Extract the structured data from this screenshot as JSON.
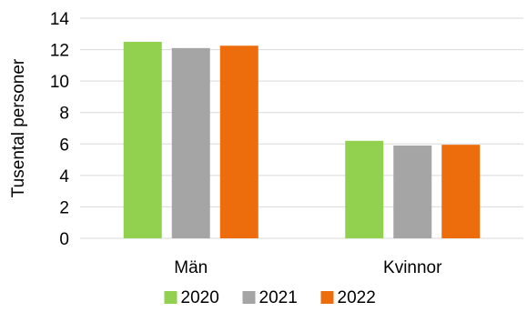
{
  "chart_data": {
    "type": "bar",
    "title": "",
    "xlabel": "",
    "ylabel": "Tusental personer",
    "ylim": [
      0,
      14
    ],
    "yticks": [
      0,
      2,
      4,
      6,
      8,
      10,
      12,
      14
    ],
    "grid": true,
    "legend_position": "bottom",
    "categories": [
      "Män",
      "Kvinnor"
    ],
    "series": [
      {
        "name": "2020",
        "color": "#92d050",
        "values": [
          12.5,
          6.2
        ]
      },
      {
        "name": "2021",
        "color": "#a5a5a5",
        "values": [
          12.1,
          5.9
        ]
      },
      {
        "name": "2022",
        "color": "#ed6c0c",
        "values": [
          12.25,
          5.95
        ]
      }
    ]
  }
}
